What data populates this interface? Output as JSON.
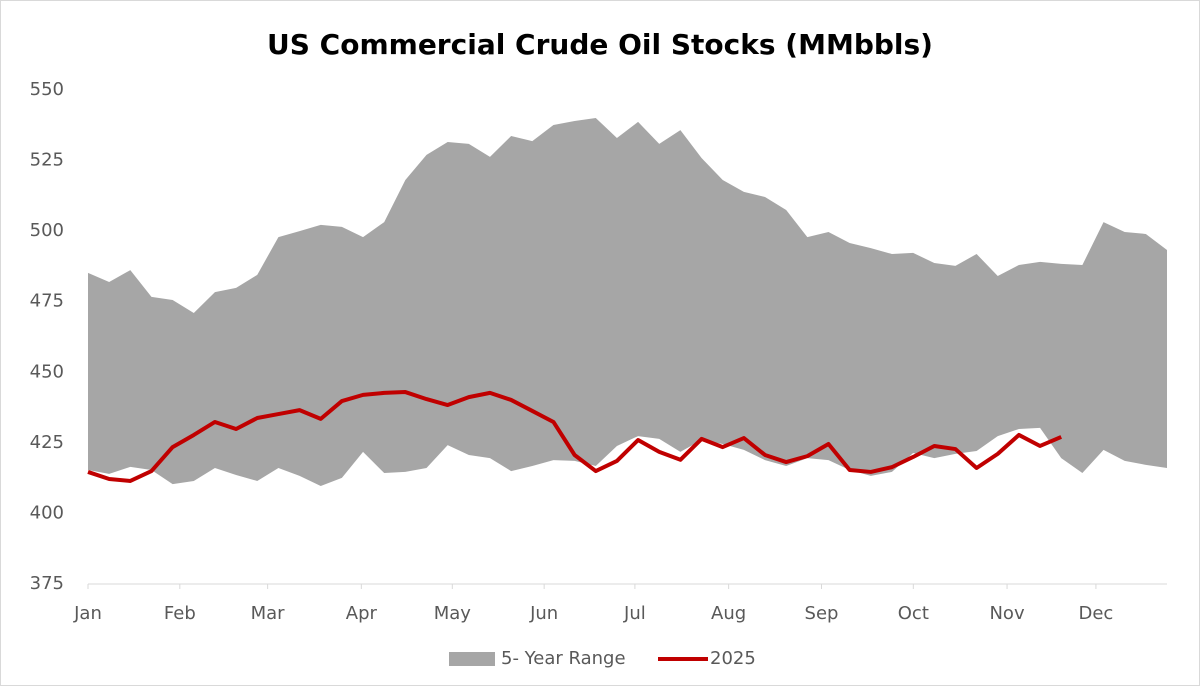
{
  "chart_data": {
    "type": "line",
    "title": "US Commercial Crude Oil Stocks (MMbbls)",
    "x": [
      0,
      1,
      2,
      3,
      4,
      5,
      6,
      7,
      8,
      9,
      10,
      11,
      12,
      13,
      14,
      15,
      16,
      17,
      18,
      19,
      20,
      21,
      22,
      23,
      24,
      25,
      26,
      27,
      28,
      29,
      30,
      31,
      32,
      33,
      34,
      35,
      36,
      37,
      38,
      39,
      40,
      41,
      42,
      43,
      44,
      45,
      46,
      47,
      48,
      49,
      50,
      51
    ],
    "xlim": [
      0,
      51
    ],
    "xticks": [
      {
        "value": 0,
        "label": "Jan"
      },
      {
        "value": 4.34,
        "label": "Feb"
      },
      {
        "value": 8.49,
        "label": "Mar"
      },
      {
        "value": 12.92,
        "label": "Apr"
      },
      {
        "value": 17.22,
        "label": "May"
      },
      {
        "value": 21.56,
        "label": "Jun"
      },
      {
        "value": 25.85,
        "label": "Jul"
      },
      {
        "value": 30.28,
        "label": "Aug"
      },
      {
        "value": 34.67,
        "label": "Sep"
      },
      {
        "value": 39.01,
        "label": "Oct"
      },
      {
        "value": 43.44,
        "label": "Nov"
      },
      {
        "value": 47.64,
        "label": "Dec"
      }
    ],
    "ylim": [
      375,
      550
    ],
    "yticks": [
      375,
      400,
      425,
      450,
      475,
      500,
      525,
      550
    ],
    "grid": false,
    "legend": "bottom",
    "range": {
      "name": "5- Year Range",
      "color": "#a6a6a6",
      "high": [
        485.2,
        482,
        486.2,
        476.7,
        475.6,
        471,
        478.4,
        479.9,
        484.5,
        497.9,
        500,
        502.2,
        501.5,
        497.9,
        503.2,
        518.1,
        527,
        531.6,
        530.9,
        526.3,
        533.7,
        531.9,
        537.6,
        539,
        540.1,
        533,
        538.7,
        530.9,
        535.8,
        525.9,
        518.1,
        513.9,
        512.1,
        507.5,
        497.9,
        499.7,
        495.8,
        494,
        491.9,
        492.3,
        488.7,
        487.7,
        491.9,
        484.1,
        488,
        489.1,
        488.4,
        488,
        503.2,
        499.7,
        499,
        493.3
      ],
      "low": [
        415.4,
        414,
        416.5,
        415.4,
        410.4,
        411.5,
        416.1,
        413.6,
        411.5,
        416.1,
        413.3,
        409.7,
        412.6,
        421.8,
        414.3,
        414.7,
        416.1,
        424.2,
        420.7,
        419.6,
        415,
        416.8,
        418.9,
        418.6,
        416.8,
        423.9,
        427.4,
        426.4,
        421.8,
        426,
        424.6,
        422.5,
        418.9,
        416.8,
        419.6,
        418.9,
        415.4,
        413.3,
        414.7,
        421.4,
        419.6,
        421.1,
        422.1,
        427.4,
        429.9,
        430.3,
        419.6,
        414.3,
        422.5,
        418.6,
        417.2,
        416.1
      ]
    },
    "series": [
      {
        "name": "2025",
        "color": "#c00000",
        "values": [
          414.7,
          412.2,
          411.5,
          415,
          423.5,
          427.8,
          432.4,
          429.9,
          433.8,
          435.2,
          436.6,
          433.5,
          439.8,
          442,
          442.7,
          443,
          440.5,
          438.4,
          441.2,
          442.7,
          440.2,
          436.3,
          432.4,
          420.7,
          415,
          418.6,
          426,
          421.8,
          419,
          426.4,
          423.5,
          426.7,
          420.7,
          418.2,
          420.3,
          424.6,
          415.4,
          414.7,
          416.4,
          420,
          423.9,
          422.8,
          416.1,
          421.1,
          427.8,
          423.9,
          427.1,
          null,
          null,
          null,
          null,
          null
        ]
      }
    ]
  }
}
